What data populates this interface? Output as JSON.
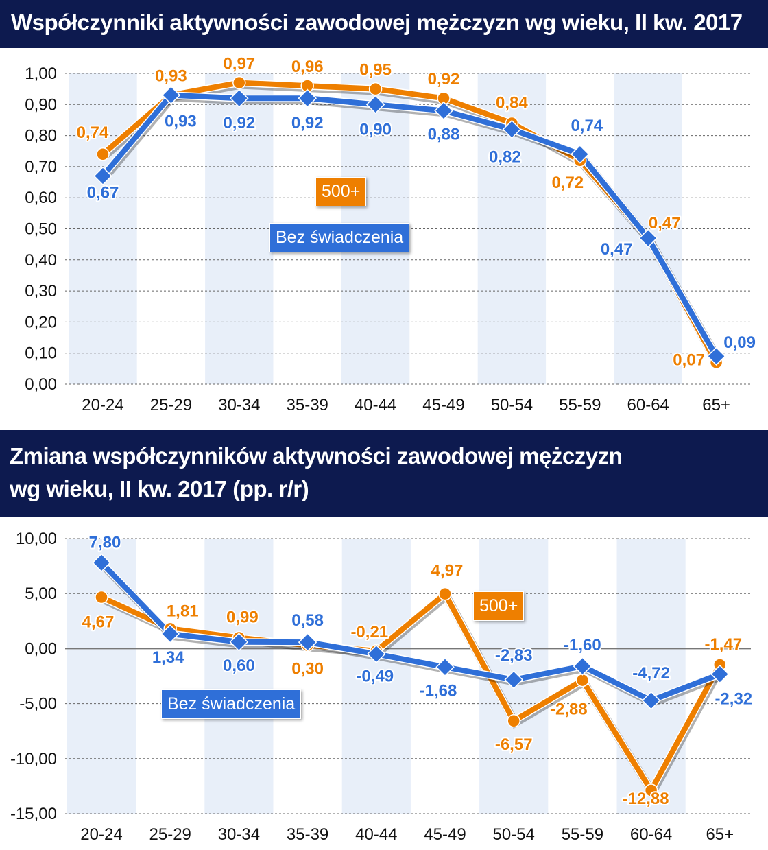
{
  "chart_data": [
    {
      "type": "line",
      "title": "Współczynniki aktywności zawodowej mężczyzn wg wieku, II kw. 2017",
      "categories": [
        "20-24",
        "25-29",
        "30-34",
        "35-39",
        "40-44",
        "45-49",
        "50-54",
        "55-59",
        "60-64",
        "65+"
      ],
      "ylim": [
        0,
        1
      ],
      "yticks": [
        "0,00",
        "0,10",
        "0,20",
        "0,30",
        "0,40",
        "0,50",
        "0,60",
        "0,70",
        "0,80",
        "0,90",
        "1,00"
      ],
      "series": [
        {
          "name": "500+",
          "color": "#ee7f00",
          "values": [
            0.74,
            0.93,
            0.97,
            0.96,
            0.95,
            0.92,
            0.84,
            0.72,
            0.47,
            0.07
          ],
          "labels": [
            "0,74",
            "0,93",
            "0,97",
            "0,96",
            "0,95",
            "0,92",
            "0,84",
            "0,72",
            "0,47",
            "0,07"
          ]
        },
        {
          "name": "Bez świadczenia",
          "color": "#2f6fd8",
          "values": [
            0.67,
            0.93,
            0.92,
            0.92,
            0.9,
            0.88,
            0.82,
            0.74,
            0.47,
            0.09
          ],
          "labels": [
            "0,67",
            "0,93",
            "0,92",
            "0,92",
            "0,90",
            "0,88",
            "0,82",
            "0,74",
            "0,47",
            "0,09"
          ]
        }
      ]
    },
    {
      "type": "line",
      "title_line1": "Zmiana współczynników aktywności zawodowej mężczyzn",
      "title_line2": "wg wieku, II kw. 2017 (pp. r/r)",
      "categories": [
        "20-24",
        "25-29",
        "30-34",
        "35-39",
        "40-44",
        "45-49",
        "50-54",
        "55-59",
        "60-64",
        "65+"
      ],
      "ylim": [
        -15,
        10
      ],
      "yticks": [
        "-15,00",
        "-10,00",
        "-5,00",
        "0,00",
        "5,00",
        "10,00"
      ],
      "series": [
        {
          "name": "500+",
          "color": "#ee7f00",
          "values": [
            4.67,
            1.81,
            0.99,
            0.3,
            -0.21,
            4.97,
            -6.57,
            -2.88,
            -12.88,
            -1.47
          ],
          "labels": [
            "4,67",
            "1,81",
            "0,99",
            "0,30",
            "-0,21",
            "4,97",
            "-6,57",
            "-2,88",
            "-12,88",
            "-1,47"
          ]
        },
        {
          "name": "Bez świadczenia",
          "color": "#2f6fd8",
          "values": [
            7.8,
            1.34,
            0.6,
            0.58,
            -0.49,
            -1.68,
            -2.83,
            -1.6,
            -4.72,
            -2.32
          ],
          "labels": [
            "7,80",
            "1,34",
            "0,60",
            "0,58",
            "-0,49",
            "-1,68",
            "-2,83",
            "-1,60",
            "-4,72",
            "-2,32"
          ]
        }
      ]
    }
  ]
}
